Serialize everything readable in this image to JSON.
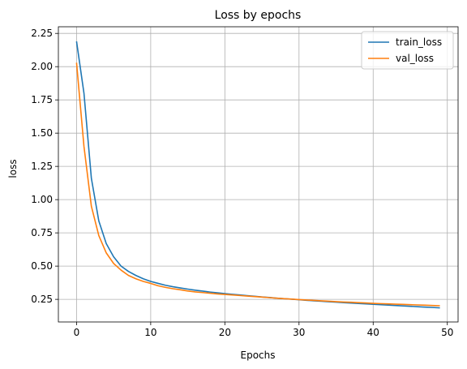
{
  "chart_data": {
    "type": "line",
    "title": "Loss by epochs",
    "xlabel": "Epochs",
    "ylabel": "loss",
    "xlim": [
      -2.45,
      51.45
    ],
    "ylim": [
      0.08,
      2.3
    ],
    "xticks": [
      0,
      10,
      20,
      30,
      40,
      50
    ],
    "xtick_labels": [
      "0",
      "10",
      "20",
      "30",
      "40",
      "50"
    ],
    "yticks": [
      0.25,
      0.5,
      0.75,
      1.0,
      1.25,
      1.5,
      1.75,
      2.0,
      2.25
    ],
    "ytick_labels": [
      "0.25",
      "0.50",
      "0.75",
      "1.00",
      "1.25",
      "1.50",
      "1.75",
      "2.00",
      "2.25"
    ],
    "grid": true,
    "legend_position": "top-right",
    "series": [
      {
        "name": "train_loss",
        "color": "#1f77b4",
        "x": [
          0,
          1,
          2,
          3,
          4,
          5,
          6,
          7,
          8,
          9,
          10,
          11,
          12,
          13,
          14,
          15,
          16,
          17,
          18,
          19,
          20,
          21,
          22,
          23,
          24,
          25,
          26,
          27,
          28,
          29,
          30,
          31,
          32,
          33,
          34,
          35,
          36,
          37,
          38,
          39,
          40,
          41,
          42,
          43,
          44,
          45,
          46,
          47,
          48,
          49
        ],
        "values": [
          2.19,
          1.8,
          1.16,
          0.84,
          0.67,
          0.57,
          0.5,
          0.46,
          0.43,
          0.405,
          0.385,
          0.37,
          0.356,
          0.345,
          0.336,
          0.327,
          0.319,
          0.312,
          0.305,
          0.299,
          0.293,
          0.288,
          0.283,
          0.278,
          0.273,
          0.268,
          0.264,
          0.259,
          0.255,
          0.251,
          0.247,
          0.243,
          0.239,
          0.236,
          0.232,
          0.229,
          0.225,
          0.222,
          0.219,
          0.216,
          0.213,
          0.21,
          0.207,
          0.204,
          0.201,
          0.198,
          0.195,
          0.192,
          0.189,
          0.186
        ]
      },
      {
        "name": "val_loss",
        "color": "#ff7f0e",
        "x": [
          0,
          1,
          2,
          3,
          4,
          5,
          6,
          7,
          8,
          9,
          10,
          11,
          12,
          13,
          14,
          15,
          16,
          17,
          18,
          19,
          20,
          21,
          22,
          23,
          24,
          25,
          26,
          27,
          28,
          29,
          30,
          31,
          32,
          33,
          34,
          35,
          36,
          37,
          38,
          39,
          40,
          41,
          42,
          43,
          44,
          45,
          46,
          47,
          48,
          49
        ],
        "values": [
          2.03,
          1.4,
          0.95,
          0.73,
          0.6,
          0.52,
          0.47,
          0.43,
          0.405,
          0.385,
          0.37,
          0.352,
          0.34,
          0.33,
          0.322,
          0.313,
          0.306,
          0.301,
          0.296,
          0.291,
          0.287,
          0.283,
          0.279,
          0.275,
          0.271,
          0.267,
          0.263,
          0.259,
          0.255,
          0.252,
          0.248,
          0.245,
          0.242,
          0.239,
          0.236,
          0.233,
          0.23,
          0.228,
          0.225,
          0.223,
          0.22,
          0.218,
          0.216,
          0.214,
          0.212,
          0.21,
          0.208,
          0.206,
          0.204,
          0.202
        ]
      }
    ]
  }
}
